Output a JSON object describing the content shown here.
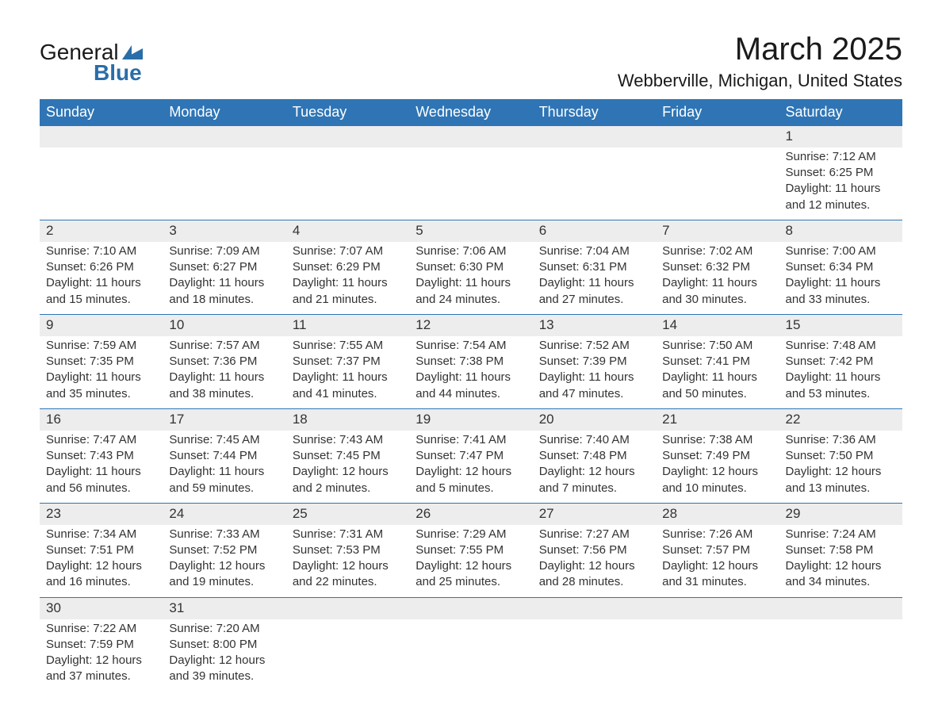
{
  "logo": {
    "text1": "General",
    "text2": "Blue",
    "sail_color": "#2a6da8"
  },
  "title": "March 2025",
  "subtitle": "Webberville, Michigan, United States",
  "colors": {
    "header_bg": "#2f75b5",
    "header_text": "#ffffff",
    "daynum_bg": "#ededed",
    "border": "#2f75b5",
    "text": "#333333"
  },
  "day_headers": [
    "Sunday",
    "Monday",
    "Tuesday",
    "Wednesday",
    "Thursday",
    "Friday",
    "Saturday"
  ],
  "weeks": [
    [
      null,
      null,
      null,
      null,
      null,
      null,
      {
        "n": "1",
        "sr": "Sunrise: 7:12 AM",
        "ss": "Sunset: 6:25 PM",
        "dl": "Daylight: 11 hours and 12 minutes."
      }
    ],
    [
      {
        "n": "2",
        "sr": "Sunrise: 7:10 AM",
        "ss": "Sunset: 6:26 PM",
        "dl": "Daylight: 11 hours and 15 minutes."
      },
      {
        "n": "3",
        "sr": "Sunrise: 7:09 AM",
        "ss": "Sunset: 6:27 PM",
        "dl": "Daylight: 11 hours and 18 minutes."
      },
      {
        "n": "4",
        "sr": "Sunrise: 7:07 AM",
        "ss": "Sunset: 6:29 PM",
        "dl": "Daylight: 11 hours and 21 minutes."
      },
      {
        "n": "5",
        "sr": "Sunrise: 7:06 AM",
        "ss": "Sunset: 6:30 PM",
        "dl": "Daylight: 11 hours and 24 minutes."
      },
      {
        "n": "6",
        "sr": "Sunrise: 7:04 AM",
        "ss": "Sunset: 6:31 PM",
        "dl": "Daylight: 11 hours and 27 minutes."
      },
      {
        "n": "7",
        "sr": "Sunrise: 7:02 AM",
        "ss": "Sunset: 6:32 PM",
        "dl": "Daylight: 11 hours and 30 minutes."
      },
      {
        "n": "8",
        "sr": "Sunrise: 7:00 AM",
        "ss": "Sunset: 6:34 PM",
        "dl": "Daylight: 11 hours and 33 minutes."
      }
    ],
    [
      {
        "n": "9",
        "sr": "Sunrise: 7:59 AM",
        "ss": "Sunset: 7:35 PM",
        "dl": "Daylight: 11 hours and 35 minutes."
      },
      {
        "n": "10",
        "sr": "Sunrise: 7:57 AM",
        "ss": "Sunset: 7:36 PM",
        "dl": "Daylight: 11 hours and 38 minutes."
      },
      {
        "n": "11",
        "sr": "Sunrise: 7:55 AM",
        "ss": "Sunset: 7:37 PM",
        "dl": "Daylight: 11 hours and 41 minutes."
      },
      {
        "n": "12",
        "sr": "Sunrise: 7:54 AM",
        "ss": "Sunset: 7:38 PM",
        "dl": "Daylight: 11 hours and 44 minutes."
      },
      {
        "n": "13",
        "sr": "Sunrise: 7:52 AM",
        "ss": "Sunset: 7:39 PM",
        "dl": "Daylight: 11 hours and 47 minutes."
      },
      {
        "n": "14",
        "sr": "Sunrise: 7:50 AM",
        "ss": "Sunset: 7:41 PM",
        "dl": "Daylight: 11 hours and 50 minutes."
      },
      {
        "n": "15",
        "sr": "Sunrise: 7:48 AM",
        "ss": "Sunset: 7:42 PM",
        "dl": "Daylight: 11 hours and 53 minutes."
      }
    ],
    [
      {
        "n": "16",
        "sr": "Sunrise: 7:47 AM",
        "ss": "Sunset: 7:43 PM",
        "dl": "Daylight: 11 hours and 56 minutes."
      },
      {
        "n": "17",
        "sr": "Sunrise: 7:45 AM",
        "ss": "Sunset: 7:44 PM",
        "dl": "Daylight: 11 hours and 59 minutes."
      },
      {
        "n": "18",
        "sr": "Sunrise: 7:43 AM",
        "ss": "Sunset: 7:45 PM",
        "dl": "Daylight: 12 hours and 2 minutes."
      },
      {
        "n": "19",
        "sr": "Sunrise: 7:41 AM",
        "ss": "Sunset: 7:47 PM",
        "dl": "Daylight: 12 hours and 5 minutes."
      },
      {
        "n": "20",
        "sr": "Sunrise: 7:40 AM",
        "ss": "Sunset: 7:48 PM",
        "dl": "Daylight: 12 hours and 7 minutes."
      },
      {
        "n": "21",
        "sr": "Sunrise: 7:38 AM",
        "ss": "Sunset: 7:49 PM",
        "dl": "Daylight: 12 hours and 10 minutes."
      },
      {
        "n": "22",
        "sr": "Sunrise: 7:36 AM",
        "ss": "Sunset: 7:50 PM",
        "dl": "Daylight: 12 hours and 13 minutes."
      }
    ],
    [
      {
        "n": "23",
        "sr": "Sunrise: 7:34 AM",
        "ss": "Sunset: 7:51 PM",
        "dl": "Daylight: 12 hours and 16 minutes."
      },
      {
        "n": "24",
        "sr": "Sunrise: 7:33 AM",
        "ss": "Sunset: 7:52 PM",
        "dl": "Daylight: 12 hours and 19 minutes."
      },
      {
        "n": "25",
        "sr": "Sunrise: 7:31 AM",
        "ss": "Sunset: 7:53 PM",
        "dl": "Daylight: 12 hours and 22 minutes."
      },
      {
        "n": "26",
        "sr": "Sunrise: 7:29 AM",
        "ss": "Sunset: 7:55 PM",
        "dl": "Daylight: 12 hours and 25 minutes."
      },
      {
        "n": "27",
        "sr": "Sunrise: 7:27 AM",
        "ss": "Sunset: 7:56 PM",
        "dl": "Daylight: 12 hours and 28 minutes."
      },
      {
        "n": "28",
        "sr": "Sunrise: 7:26 AM",
        "ss": "Sunset: 7:57 PM",
        "dl": "Daylight: 12 hours and 31 minutes."
      },
      {
        "n": "29",
        "sr": "Sunrise: 7:24 AM",
        "ss": "Sunset: 7:58 PM",
        "dl": "Daylight: 12 hours and 34 minutes."
      }
    ],
    [
      {
        "n": "30",
        "sr": "Sunrise: 7:22 AM",
        "ss": "Sunset: 7:59 PM",
        "dl": "Daylight: 12 hours and 37 minutes."
      },
      {
        "n": "31",
        "sr": "Sunrise: 7:20 AM",
        "ss": "Sunset: 8:00 PM",
        "dl": "Daylight: 12 hours and 39 minutes."
      },
      null,
      null,
      null,
      null,
      null
    ]
  ]
}
